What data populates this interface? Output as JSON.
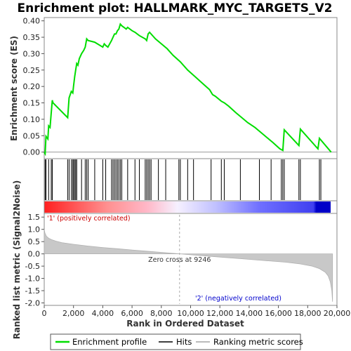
{
  "chart_data": {
    "type": "line",
    "title": "Enrichment plot: HALLMARK_MYC_TARGETS_V2",
    "panels": {
      "enrichment": {
        "ylabel": "Enrichment score (ES)",
        "ylim": [
          -0.02,
          0.41
        ],
        "yticks": [
          0.0,
          0.05,
          0.1,
          0.15,
          0.2,
          0.25,
          0.3,
          0.35,
          0.4
        ],
        "ytick_labels": [
          "0.00",
          "0.05",
          "0.10",
          "0.15",
          "0.20",
          "0.25",
          "0.30",
          "0.35",
          "0.40"
        ],
        "series": [
          {
            "name": "Enrichment profile",
            "color": "#00dd00",
            "x": [
              0,
              60,
              120,
              250,
              300,
              400,
              480,
              550,
              600,
              1600,
              1700,
              1850,
              1950,
              2000,
              2080,
              2150,
              2220,
              2300,
              2400,
              2550,
              2700,
              2800,
              2900,
              3000,
              3450,
              4000,
              4100,
              4200,
              4350,
              4600,
              4700,
              4800,
              4900,
              5000,
              5100,
              5200,
              5300,
              5600,
              5700,
              6000,
              6200,
              6500,
              6900,
              7000,
              7100,
              7200,
              7300,
              7600,
              8000,
              8400,
              8800,
              9300,
              9800,
              10300,
              10800,
              11300,
              11500,
              11700,
              12100,
              12300,
              12600,
              13100,
              13500,
              13900,
              14400,
              14800,
              15200,
              15600,
              16100,
              16300,
              16400,
              17400,
              17500,
              18700,
              18800,
              19600
            ],
            "y": [
              0.0,
              -0.005,
              0.048,
              0.04,
              0.08,
              0.075,
              0.12,
              0.158,
              0.15,
              0.105,
              0.165,
              0.185,
              0.18,
              0.2,
              0.23,
              0.25,
              0.27,
              0.265,
              0.285,
              0.3,
              0.31,
              0.32,
              0.345,
              0.34,
              0.335,
              0.32,
              0.33,
              0.325,
              0.32,
              0.34,
              0.35,
              0.36,
              0.36,
              0.37,
              0.375,
              0.39,
              0.385,
              0.375,
              0.38,
              0.37,
              0.365,
              0.355,
              0.345,
              0.34,
              0.36,
              0.365,
              0.36,
              0.345,
              0.33,
              0.315,
              0.295,
              0.275,
              0.25,
              0.23,
              0.21,
              0.19,
              0.175,
              0.17,
              0.155,
              0.15,
              0.14,
              0.12,
              0.105,
              0.09,
              0.075,
              0.06,
              0.045,
              0.03,
              0.01,
              0.005,
              0.068,
              0.02,
              0.07,
              0.01,
              0.042,
              0.0
            ]
          }
        ]
      },
      "hits": {
        "name": "Hits",
        "positions": [
          60,
          120,
          300,
          480,
          550,
          1600,
          1700,
          1850,
          1950,
          2000,
          2080,
          2150,
          2220,
          2550,
          2800,
          2900,
          3000,
          3450,
          4000,
          4200,
          4600,
          4700,
          4800,
          4900,
          5000,
          5100,
          5200,
          5300,
          5700,
          6200,
          6500,
          6900,
          7000,
          7100,
          7200,
          7300,
          7800,
          8300,
          9200,
          9300,
          9800,
          10200,
          11400,
          12100,
          12300,
          13400,
          14700,
          15500,
          16200,
          16300,
          16400,
          17400,
          17500,
          18800,
          18900
        ]
      },
      "ranked_metric": {
        "name": "Ranking metric scores",
        "ylabel": "Ranked list metric (Signal2Noise)",
        "xlabel": "Rank in Ordered Dataset",
        "xlim": [
          0,
          20000
        ],
        "ylim": [
          -2.1,
          1.65
        ],
        "yticks": [
          1.5,
          1.0,
          0.5,
          0.0,
          -0.5,
          -1.0,
          -1.5,
          -2.0
        ],
        "ytick_labels": [
          "1.5",
          "1.0",
          "0.5",
          "0.0",
          "-0.5",
          "-1.0",
          "-1.5",
          "-2.0"
        ],
        "xticks": [
          0,
          2000,
          4000,
          6000,
          8000,
          10000,
          12000,
          14000,
          16000,
          18000,
          20000
        ],
        "xtick_labels": [
          "0",
          "2,000",
          "4,000",
          "6,000",
          "8,000",
          "10,000",
          "12,000",
          "14,000",
          "16,000",
          "18,000",
          "20,000"
        ],
        "curve_x": [
          0,
          50,
          150,
          300,
          500,
          800,
          1200,
          2000,
          3000,
          4000,
          5000,
          6000,
          7000,
          8000,
          9246,
          10500,
          12000,
          13500,
          15000,
          16500,
          17500,
          18300,
          18800,
          19200,
          19400,
          19550,
          19650,
          19700
        ],
        "curve_y": [
          1.0,
          0.85,
          0.72,
          0.64,
          0.58,
          0.52,
          0.46,
          0.39,
          0.32,
          0.26,
          0.21,
          0.16,
          0.11,
          0.06,
          0.0,
          -0.06,
          -0.13,
          -0.2,
          -0.27,
          -0.34,
          -0.41,
          -0.5,
          -0.6,
          -0.75,
          -0.9,
          -1.15,
          -1.5,
          -1.95
        ]
      },
      "gradient_bar": {
        "pos_color": "#ff0000",
        "neg_color": "#0000cc"
      }
    },
    "annotations": {
      "zero_cross": "Zero cross at 9246",
      "zero_cross_x": 9246,
      "positive_label": "'1' (positively correlated)",
      "negative_label": "'2' (negatively correlated)",
      "positive_color": "#cc0000",
      "negative_color": "#0000cc"
    },
    "legend": {
      "placement": "bottom",
      "entries": [
        {
          "label": "Enrichment profile",
          "color": "#00dd00"
        },
        {
          "label": "Hits",
          "color": "#000000"
        },
        {
          "label": "Ranking metric scores",
          "color": "#bbbbbb"
        }
      ]
    }
  }
}
